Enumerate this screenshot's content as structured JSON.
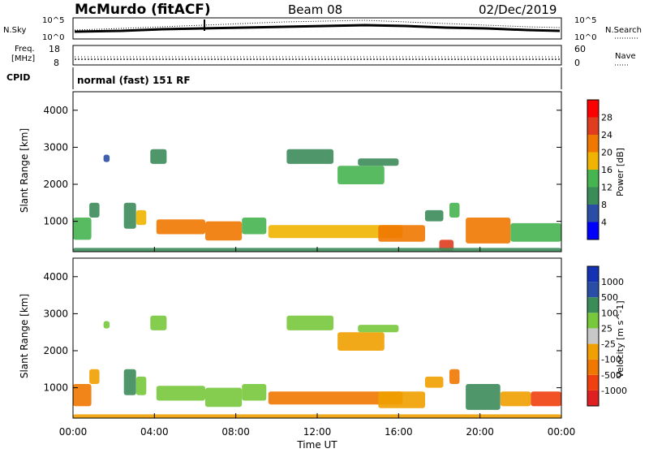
{
  "header": {
    "station": "McMurdo (fitACF)",
    "beam": "Beam 08",
    "date": "02/Dec/2019"
  },
  "noise_panel": {
    "left_label": "N.Sky",
    "right_label": "N.Search",
    "left_ticks": [
      "10^5",
      "10^0"
    ],
    "right_ticks": [
      "10^5",
      "10^0"
    ]
  },
  "freq_panel": {
    "left_label_line1": "Freq.",
    "left_label_line2": "[MHz]",
    "left_ticks": [
      "18",
      "8"
    ],
    "right_label": "Nave",
    "right_ticks": [
      "60",
      "0"
    ]
  },
  "cpid_panel": {
    "label": "CPID",
    "text": "normal (fast) 151 RF"
  },
  "colors": {
    "power_scale": [
      "#0000ff",
      "#2a4ea6",
      "#3c8c5a",
      "#46b450",
      "#f0b400",
      "#f07800",
      "#e03c1e",
      "#ff0000"
    ],
    "velocity_scale": [
      "#e02020",
      "#f04010",
      "#f07800",
      "#f0a000",
      "#c8c8c8",
      "#78c83c",
      "#3c8c5a",
      "#2a4ea6",
      "#1432b4"
    ]
  },
  "chart_data": [
    {
      "type": "heatmap",
      "title": "Power",
      "xlabel": "",
      "ylabel": "Slant Range [km]",
      "x_ticks": [
        "00:00",
        "04:00",
        "08:00",
        "12:00",
        "16:00",
        "20:00",
        "00:00"
      ],
      "y_ticks": [
        "1000",
        "2000",
        "3000",
        "4000"
      ],
      "xlim": [
        0,
        24
      ],
      "ylim": [
        180,
        4500
      ],
      "colorbar": {
        "label": "Power [dB]",
        "ticks": [
          "4",
          "8",
          "12",
          "16",
          "20",
          "24",
          "28"
        ],
        "range": [
          0,
          32
        ]
      },
      "regions": [
        {
          "x": [
            0,
            0.9
          ],
          "y": [
            500,
            1100
          ],
          "value": 14
        },
        {
          "x": [
            0.8,
            1.3
          ],
          "y": [
            1100,
            1500
          ],
          "value": 10
        },
        {
          "x": [
            1.5,
            1.8
          ],
          "y": [
            2600,
            2800
          ],
          "value": 6
        },
        {
          "x": [
            2.5,
            3.1
          ],
          "y": [
            800,
            1500
          ],
          "value": 11
        },
        {
          "x": [
            3.1,
            3.6
          ],
          "y": [
            900,
            1300
          ],
          "value": 16
        },
        {
          "x": [
            3.8,
            4.6
          ],
          "y": [
            2550,
            2950
          ],
          "value": 9
        },
        {
          "x": [
            4.1,
            6.5
          ],
          "y": [
            650,
            1050
          ],
          "value": 20
        },
        {
          "x": [
            6.5,
            8.3
          ],
          "y": [
            480,
            1000
          ],
          "value": 20
        },
        {
          "x": [
            8.3,
            9.5
          ],
          "y": [
            650,
            1100
          ],
          "value": 14
        },
        {
          "x": [
            9.6,
            16.2
          ],
          "y": [
            550,
            900
          ],
          "value": 16
        },
        {
          "x": [
            15.0,
            17.3
          ],
          "y": [
            450,
            900
          ],
          "value": 22
        },
        {
          "x": [
            10.5,
            12.8
          ],
          "y": [
            2550,
            2950
          ],
          "value": 11
        },
        {
          "x": [
            13.0,
            15.3
          ],
          "y": [
            2000,
            2500
          ],
          "value": 13
        },
        {
          "x": [
            14.0,
            16.0
          ],
          "y": [
            2500,
            2700
          ],
          "value": 9
        },
        {
          "x": [
            17.3,
            18.2
          ],
          "y": [
            1000,
            1300
          ],
          "value": 8
        },
        {
          "x": [
            18.5,
            19.0
          ],
          "y": [
            1100,
            1500
          ],
          "value": 12
        },
        {
          "x": [
            18.0,
            18.7
          ],
          "y": [
            200,
            500
          ],
          "value": 26
        },
        {
          "x": [
            19.3,
            21.5
          ],
          "y": [
            400,
            1100
          ],
          "value": 20
        },
        {
          "x": [
            21.5,
            24.0
          ],
          "y": [
            450,
            950
          ],
          "value": 12
        },
        {
          "x": [
            0,
            24
          ],
          "y": [
            180,
            280
          ],
          "value": 8
        }
      ]
    },
    {
      "type": "heatmap",
      "title": "Velocity",
      "xlabel": "Time UT",
      "ylabel": "Slant Range [km]",
      "x_ticks": [
        "00:00",
        "04:00",
        "08:00",
        "12:00",
        "16:00",
        "20:00",
        "00:00"
      ],
      "y_ticks": [
        "1000",
        "2000",
        "3000",
        "4000"
      ],
      "xlim": [
        0,
        24
      ],
      "ylim": [
        180,
        4500
      ],
      "colorbar": {
        "label": "Velocity [m s^-1]",
        "ticks": [
          "-1000",
          "-500",
          "-100",
          "-25",
          "25",
          "100",
          "500",
          "1000"
        ]
      },
      "regions": [
        {
          "x": [
            0,
            0.9
          ],
          "y": [
            500,
            1100
          ],
          "value": -250
        },
        {
          "x": [
            0.8,
            1.3
          ],
          "y": [
            1100,
            1500
          ],
          "value": -80
        },
        {
          "x": [
            1.5,
            1.8
          ],
          "y": [
            2600,
            2800
          ],
          "value": 60
        },
        {
          "x": [
            2.5,
            3.1
          ],
          "y": [
            800,
            1500
          ],
          "value": 300
        },
        {
          "x": [
            3.1,
            3.6
          ],
          "y": [
            800,
            1300
          ],
          "value": 60
        },
        {
          "x": [
            3.8,
            4.6
          ],
          "y": [
            2550,
            2950
          ],
          "value": 60
        },
        {
          "x": [
            4.1,
            6.5
          ],
          "y": [
            650,
            1050
          ],
          "value": 60
        },
        {
          "x": [
            6.5,
            8.3
          ],
          "y": [
            480,
            1000
          ],
          "value": 70
        },
        {
          "x": [
            8.3,
            9.5
          ],
          "y": [
            650,
            1100
          ],
          "value": 40
        },
        {
          "x": [
            9.6,
            16.2
          ],
          "y": [
            550,
            900
          ],
          "value": -200
        },
        {
          "x": [
            15.0,
            17.3
          ],
          "y": [
            450,
            900
          ],
          "value": -80
        },
        {
          "x": [
            10.5,
            12.8
          ],
          "y": [
            2550,
            2950
          ],
          "value": 60
        },
        {
          "x": [
            13.0,
            15.3
          ],
          "y": [
            2000,
            2500
          ],
          "value": -80
        },
        {
          "x": [
            14.0,
            16.0
          ],
          "y": [
            2500,
            2700
          ],
          "value": 60
        },
        {
          "x": [
            17.3,
            18.2
          ],
          "y": [
            1000,
            1300
          ],
          "value": -60
        },
        {
          "x": [
            18.5,
            19.0
          ],
          "y": [
            1100,
            1500
          ],
          "value": -300
        },
        {
          "x": [
            19.3,
            21.0
          ],
          "y": [
            400,
            1100
          ],
          "value": 300
        },
        {
          "x": [
            21.0,
            22.5
          ],
          "y": [
            500,
            900
          ],
          "value": -80
        },
        {
          "x": [
            22.5,
            24.0
          ],
          "y": [
            500,
            900
          ],
          "value": -700
        },
        {
          "x": [
            0,
            24
          ],
          "y": [
            180,
            280
          ],
          "value": -50
        }
      ]
    }
  ]
}
